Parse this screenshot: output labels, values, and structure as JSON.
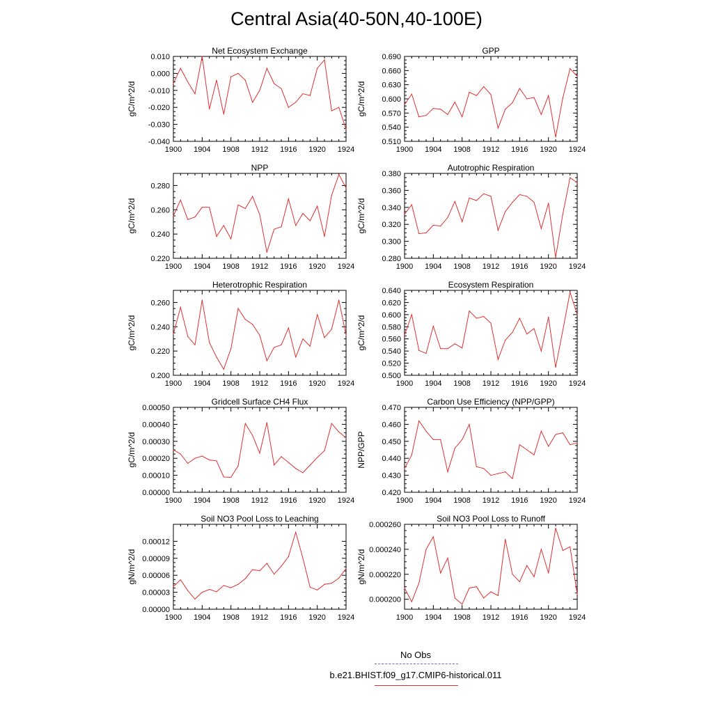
{
  "title": "Central Asia(40-50N,40-100E)",
  "legend": {
    "obs_label": "No Obs",
    "model_label": "b.e21.BHIST.f09_g17.CMIP6-historical.011",
    "obs_color": "#6666dd",
    "model_color": "#e03030"
  },
  "chart_data": [
    {
      "type": "line",
      "title": "Net Ecosystem Exchange",
      "ylabel": "gC/m^2/d",
      "xlim": [
        1900,
        1924
      ],
      "x_ticks": [
        "1900",
        "1904",
        "1908",
        "1912",
        "1916",
        "1920",
        "1924"
      ],
      "ylim": [
        -0.04,
        0.01
      ],
      "y_ticks": [
        "0.010",
        "0.000",
        "-0.010",
        "-0.020",
        "-0.030",
        "-0.040"
      ],
      "y_tick_values": [
        0.01,
        0.0,
        -0.01,
        -0.02,
        -0.03,
        -0.04
      ],
      "x": [
        1900,
        1901,
        1902,
        1903,
        1904,
        1905,
        1906,
        1907,
        1908,
        1909,
        1910,
        1911,
        1912,
        1913,
        1914,
        1915,
        1916,
        1917,
        1918,
        1919,
        1920,
        1921,
        1922,
        1923,
        1924
      ],
      "values": [
        -0.006,
        0.003,
        -0.005,
        -0.012,
        0.01,
        -0.021,
        -0.004,
        -0.024,
        -0.002,
        0.0,
        -0.004,
        -0.017,
        -0.01,
        0.003,
        -0.006,
        -0.009,
        -0.02,
        -0.017,
        -0.012,
        -0.013,
        0.003,
        0.008,
        -0.022,
        -0.02,
        -0.033
      ]
    },
    {
      "type": "line",
      "title": "GPP",
      "ylabel": "gC/m^2/d",
      "xlim": [
        1900,
        1924
      ],
      "x_ticks": [
        "1900",
        "1904",
        "1908",
        "1912",
        "1916",
        "1920",
        "1924"
      ],
      "ylim": [
        0.51,
        0.69
      ],
      "y_ticks": [
        "0.690",
        "0.660",
        "0.630",
        "0.600",
        "0.570",
        "0.540",
        "0.510"
      ],
      "y_tick_values": [
        0.69,
        0.66,
        0.63,
        0.6,
        0.57,
        0.54,
        0.51
      ],
      "x": [
        1900,
        1901,
        1902,
        1903,
        1904,
        1905,
        1906,
        1907,
        1908,
        1909,
        1910,
        1911,
        1912,
        1913,
        1914,
        1915,
        1916,
        1917,
        1918,
        1919,
        1920,
        1921,
        1922,
        1923,
        1924
      ],
      "values": [
        0.588,
        0.61,
        0.562,
        0.565,
        0.58,
        0.578,
        0.567,
        0.593,
        0.562,
        0.614,
        0.607,
        0.626,
        0.609,
        0.538,
        0.578,
        0.592,
        0.622,
        0.6,
        0.603,
        0.567,
        0.607,
        0.519,
        0.602,
        0.664,
        0.648
      ]
    },
    {
      "type": "line",
      "title": "NPP",
      "ylabel": "gC/m^2/d",
      "xlim": [
        1900,
        1924
      ],
      "x_ticks": [
        "1900",
        "1904",
        "1908",
        "1912",
        "1916",
        "1920",
        "1924"
      ],
      "ylim": [
        0.22,
        0.29
      ],
      "y_ticks": [
        "0.280",
        "0.260",
        "0.240",
        "0.220"
      ],
      "y_tick_values": [
        0.28,
        0.26,
        0.24,
        0.22
      ],
      "x": [
        1900,
        1901,
        1902,
        1903,
        1904,
        1905,
        1906,
        1907,
        1908,
        1909,
        1910,
        1911,
        1912,
        1913,
        1914,
        1915,
        1916,
        1917,
        1918,
        1919,
        1920,
        1921,
        1922,
        1923,
        1924
      ],
      "values": [
        0.255,
        0.268,
        0.252,
        0.254,
        0.262,
        0.262,
        0.238,
        0.247,
        0.236,
        0.264,
        0.261,
        0.271,
        0.256,
        0.225,
        0.244,
        0.246,
        0.269,
        0.247,
        0.257,
        0.251,
        0.263,
        0.238,
        0.272,
        0.289,
        0.278
      ]
    },
    {
      "type": "line",
      "title": "Autotrophic Respiration",
      "ylabel": "gC/m^2/d",
      "xlim": [
        1900,
        1924
      ],
      "x_ticks": [
        "1900",
        "1904",
        "1908",
        "1912",
        "1916",
        "1920",
        "1924"
      ],
      "ylim": [
        0.28,
        0.38
      ],
      "y_ticks": [
        "0.380",
        "0.360",
        "0.340",
        "0.320",
        "0.300",
        "0.280"
      ],
      "y_tick_values": [
        0.38,
        0.36,
        0.34,
        0.32,
        0.3,
        0.28
      ],
      "x": [
        1900,
        1901,
        1902,
        1903,
        1904,
        1905,
        1906,
        1907,
        1908,
        1909,
        1910,
        1911,
        1912,
        1913,
        1914,
        1915,
        1916,
        1917,
        1918,
        1919,
        1920,
        1921,
        1922,
        1923,
        1924
      ],
      "values": [
        0.332,
        0.343,
        0.309,
        0.31,
        0.319,
        0.318,
        0.328,
        0.347,
        0.323,
        0.351,
        0.348,
        0.356,
        0.353,
        0.313,
        0.335,
        0.346,
        0.355,
        0.353,
        0.346,
        0.315,
        0.345,
        0.281,
        0.332,
        0.375,
        0.369
      ]
    },
    {
      "type": "line",
      "title": "Heterotrophic Respiration",
      "ylabel": "gC/m^2/d",
      "xlim": [
        1900,
        1924
      ],
      "x_ticks": [
        "1900",
        "1904",
        "1908",
        "1912",
        "1916",
        "1920",
        "1924"
      ],
      "ylim": [
        0.2,
        0.27
      ],
      "y_ticks": [
        "0.260",
        "0.240",
        "0.220",
        "0.200"
      ],
      "y_tick_values": [
        0.26,
        0.24,
        0.22,
        0.2
      ],
      "x": [
        1900,
        1901,
        1902,
        1903,
        1904,
        1905,
        1906,
        1907,
        1908,
        1909,
        1910,
        1911,
        1912,
        1913,
        1914,
        1915,
        1916,
        1917,
        1918,
        1919,
        1920,
        1921,
        1922,
        1923,
        1924
      ],
      "values": [
        0.234,
        0.256,
        0.232,
        0.225,
        0.262,
        0.227,
        0.215,
        0.205,
        0.222,
        0.255,
        0.246,
        0.242,
        0.233,
        0.212,
        0.223,
        0.225,
        0.239,
        0.215,
        0.23,
        0.224,
        0.25,
        0.231,
        0.238,
        0.262,
        0.233
      ]
    },
    {
      "type": "line",
      "title": "Ecosystem Respiration",
      "ylabel": "gC/m^2/d",
      "xlim": [
        1900,
        1924
      ],
      "x_ticks": [
        "1900",
        "1904",
        "1908",
        "1912",
        "1916",
        "1920",
        "1924"
      ],
      "ylim": [
        0.5,
        0.64
      ],
      "y_ticks": [
        "0.640",
        "0.620",
        "0.600",
        "0.580",
        "0.560",
        "0.540",
        "0.520",
        "0.500"
      ],
      "y_tick_values": [
        0.64,
        0.62,
        0.6,
        0.58,
        0.56,
        0.54,
        0.52,
        0.5
      ],
      "x": [
        1900,
        1901,
        1902,
        1903,
        1904,
        1905,
        1906,
        1907,
        1908,
        1909,
        1910,
        1911,
        1912,
        1913,
        1914,
        1915,
        1916,
        1917,
        1918,
        1919,
        1920,
        1921,
        1922,
        1923,
        1924
      ],
      "values": [
        0.566,
        0.6,
        0.541,
        0.536,
        0.581,
        0.544,
        0.544,
        0.552,
        0.545,
        0.606,
        0.594,
        0.597,
        0.586,
        0.526,
        0.558,
        0.571,
        0.594,
        0.568,
        0.577,
        0.54,
        0.596,
        0.513,
        0.574,
        0.637,
        0.6
      ]
    },
    {
      "type": "line",
      "title": "Gridcell Surface CH4 Flux",
      "ylabel": "gC/m^2/d",
      "xlim": [
        1900,
        1924
      ],
      "x_ticks": [
        "1900",
        "1904",
        "1908",
        "1912",
        "1916",
        "1920",
        "1924"
      ],
      "ylim": [
        0.0,
        0.0005
      ],
      "y_ticks": [
        "0.00050",
        "0.00040",
        "0.00030",
        "0.00020",
        "0.00010",
        "0.00000"
      ],
      "y_tick_values": [
        0.0005,
        0.0004,
        0.0003,
        0.0002,
        0.0001,
        0.0
      ],
      "x": [
        1900,
        1901,
        1902,
        1903,
        1904,
        1905,
        1906,
        1907,
        1908,
        1909,
        1910,
        1911,
        1912,
        1913,
        1914,
        1915,
        1916,
        1917,
        1918,
        1919,
        1920,
        1921,
        1922,
        1923,
        1924
      ],
      "values": [
        0.00025,
        0.000225,
        0.00017,
        0.0002,
        0.000213,
        0.00019,
        0.000185,
        9e-05,
        8.8e-05,
        0.000155,
        0.000405,
        0.000335,
        0.00023,
        0.00041,
        0.00016,
        0.00021,
        0.000175,
        0.00014,
        0.000115,
        0.00016,
        0.000205,
        0.000245,
        0.000405,
        0.000355,
        0.00032
      ]
    },
    {
      "type": "line",
      "title": "Carbon Use Efficiency (NPP/GPP)",
      "ylabel": "NPP/GPP",
      "xlim": [
        1900,
        1924
      ],
      "x_ticks": [
        "1900",
        "1904",
        "1908",
        "1912",
        "1916",
        "1920",
        "1924"
      ],
      "ylim": [
        0.42,
        0.47
      ],
      "y_ticks": [
        "0.470",
        "0.460",
        "0.450",
        "0.440",
        "0.430",
        "0.420"
      ],
      "y_tick_values": [
        0.47,
        0.46,
        0.45,
        0.44,
        0.43,
        0.42
      ],
      "x": [
        1900,
        1901,
        1902,
        1903,
        1904,
        1905,
        1906,
        1907,
        1908,
        1909,
        1910,
        1911,
        1912,
        1913,
        1914,
        1915,
        1916,
        1917,
        1918,
        1919,
        1920,
        1921,
        1922,
        1923,
        1924
      ],
      "values": [
        0.434,
        0.442,
        0.462,
        0.456,
        0.451,
        0.451,
        0.432,
        0.446,
        0.451,
        0.46,
        0.435,
        0.434,
        0.43,
        0.431,
        0.432,
        0.428,
        0.448,
        0.445,
        0.442,
        0.456,
        0.447,
        0.454,
        0.455,
        0.448,
        0.449
      ]
    },
    {
      "type": "line",
      "title": "Soil NO3 Pool Loss to Leaching",
      "ylabel": "gN/m^2/d",
      "xlim": [
        1900,
        1924
      ],
      "x_ticks": [
        "1900",
        "1904",
        "1908",
        "1912",
        "1916",
        "1920",
        "1924"
      ],
      "ylim": [
        0.0,
        0.00015
      ],
      "y_ticks": [
        "0.00012",
        "0.00009",
        "0.00006",
        "0.00003",
        "0.00000"
      ],
      "y_tick_values": [
        0.00012,
        9e-05,
        6e-05,
        3e-05,
        0.0
      ],
      "x": [
        1900,
        1901,
        1902,
        1903,
        1904,
        1905,
        1906,
        1907,
        1908,
        1909,
        1910,
        1911,
        1912,
        1913,
        1914,
        1915,
        1916,
        1917,
        1918,
        1919,
        1920,
        1921,
        1922,
        1923,
        1924
      ],
      "values": [
        4e-05,
        5.2e-05,
        3.3e-05,
        1.8e-05,
        3e-05,
        3.5e-05,
        3.1e-05,
        4.2e-05,
        3.8e-05,
        4.4e-05,
        5.4e-05,
        7e-05,
        6.8e-05,
        8.1e-05,
        6.2e-05,
        7.6e-05,
        9.3e-05,
        0.000136,
        9e-05,
        3.9e-05,
        3.4e-05,
        4.4e-05,
        4.6e-05,
        5.5e-05,
        7.2e-05
      ]
    },
    {
      "type": "line",
      "title": "Soil NO3 Pool Loss to Runoff",
      "ylabel": "gN/m^2/d",
      "xlim": [
        1900,
        1924
      ],
      "x_ticks": [
        "1900",
        "1904",
        "1908",
        "1912",
        "1916",
        "1920",
        "1924"
      ],
      "ylim": [
        0.000192,
        0.00026
      ],
      "y_ticks": [
        "0.000260",
        "0.000240",
        "0.000220",
        "0.000200"
      ],
      "y_tick_values": [
        0.00026,
        0.00024,
        0.00022,
        0.0002
      ],
      "x": [
        1900,
        1901,
        1902,
        1903,
        1904,
        1905,
        1906,
        1907,
        1908,
        1909,
        1910,
        1911,
        1912,
        1913,
        1914,
        1915,
        1916,
        1917,
        1918,
        1919,
        1920,
        1921,
        1922,
        1923,
        1924
      ],
      "values": [
        0.000209,
        0.000198,
        0.000213,
        0.00024,
        0.00025,
        0.000221,
        0.000233,
        0.000201,
        0.000196,
        0.000209,
        0.00021,
        0.000201,
        0.000206,
        0.000203,
        0.000248,
        0.00022,
        0.000214,
        0.000227,
        0.000218,
        0.00024,
        0.000221,
        0.000257,
        0.000239,
        0.000242,
        0.000204
      ]
    }
  ]
}
